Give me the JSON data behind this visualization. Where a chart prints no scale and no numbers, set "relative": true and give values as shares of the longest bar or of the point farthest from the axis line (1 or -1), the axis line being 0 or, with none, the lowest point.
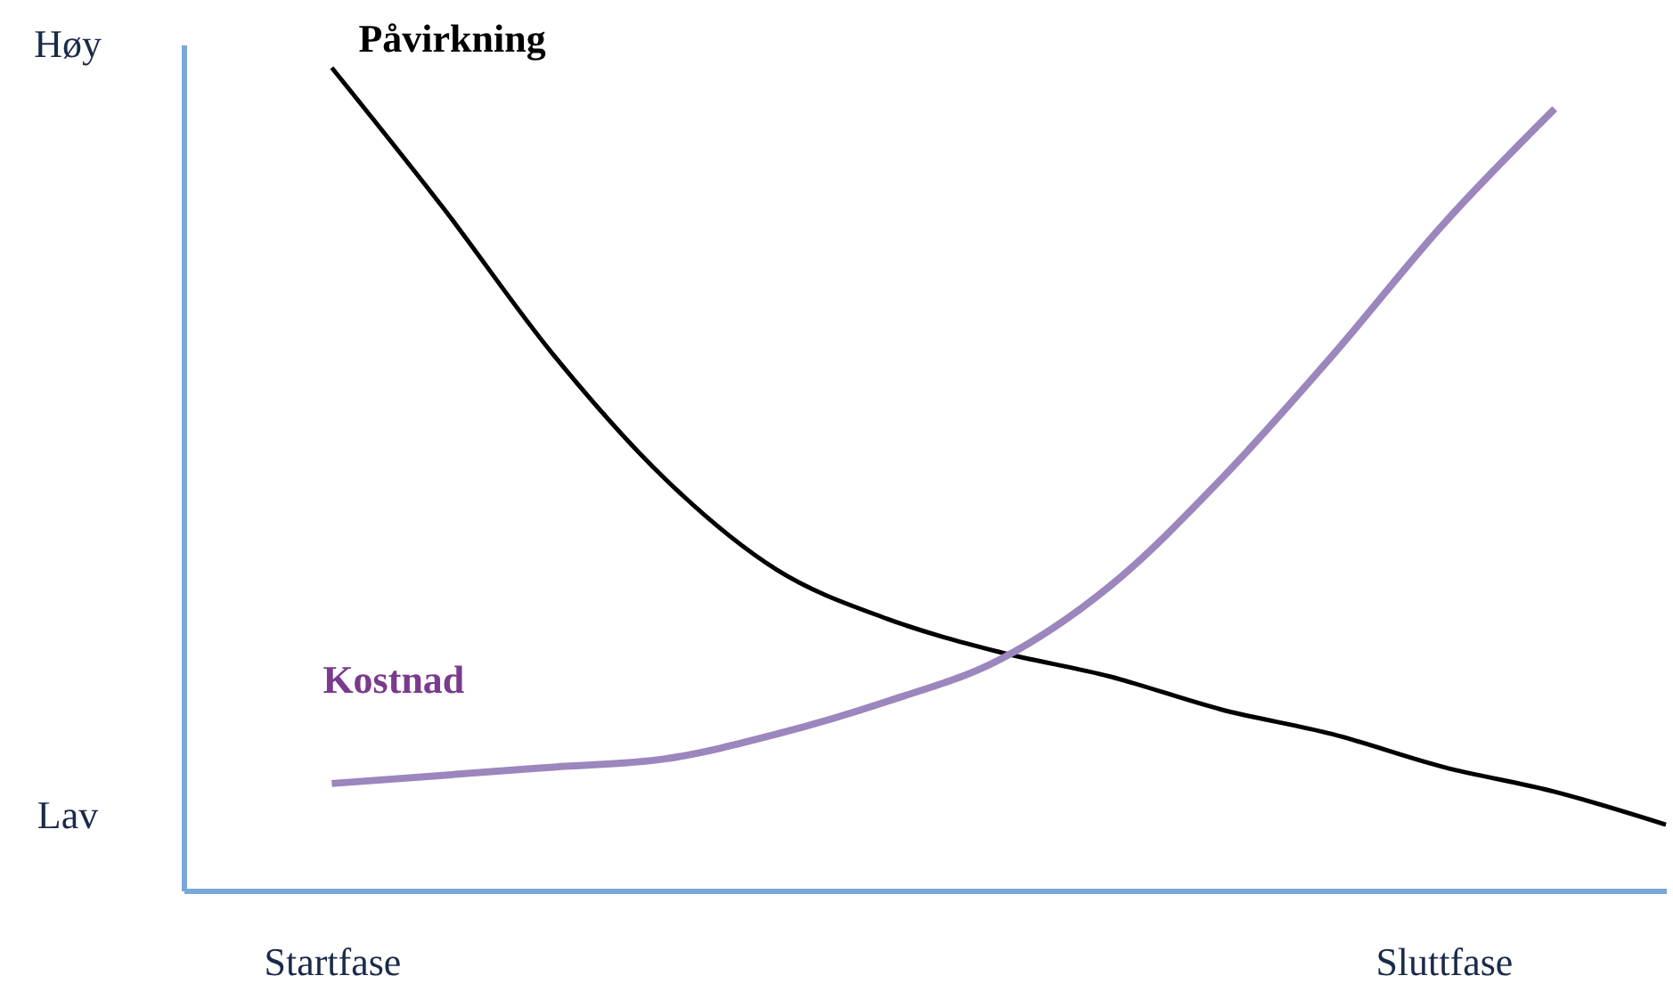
{
  "chart_data": {
    "type": "line",
    "relative": true,
    "legend": false,
    "grid": false,
    "categories": [
      "Startfase",
      null,
      null,
      null,
      null,
      null,
      null,
      null,
      null,
      null,
      "Sluttfase",
      null,
      null
    ],
    "series": [
      {
        "name": "Påvirkning",
        "color": "#000000",
        "values": [
          1.0,
          0.83,
          0.65,
          0.5,
          0.39,
          0.33,
          0.29,
          0.26,
          0.22,
          0.19,
          0.15,
          0.12,
          0.08
        ]
      },
      {
        "name": "Kostnad",
        "color": "#9b86bd",
        "values": [
          0.13,
          0.14,
          0.15,
          0.16,
          0.19,
          0.23,
          0.28,
          0.37,
          0.5,
          0.65,
          0.81,
          0.95,
          null
        ]
      }
    ],
    "annotations": [
      "Høy",
      "Lav"
    ]
  }
}
